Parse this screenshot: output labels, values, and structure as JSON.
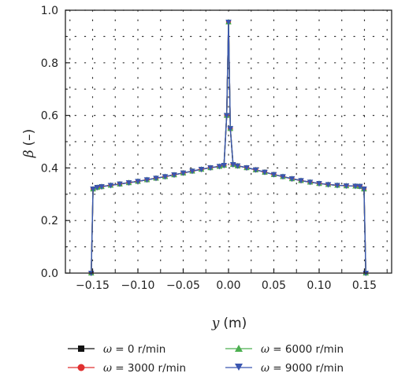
{
  "chart_data": {
    "type": "line",
    "xlabel": {
      "symbol": "y",
      "unit": "(m)"
    },
    "ylabel": {
      "symbol": "β",
      "unit": "(–)"
    },
    "xlim": [
      -0.18,
      0.18
    ],
    "ylim": [
      0.0,
      1.0
    ],
    "xticks": [
      -0.15,
      -0.1,
      -0.05,
      0.0,
      0.05,
      0.1,
      0.15
    ],
    "xtick_labels": [
      "−0.15",
      "−0.10",
      "−0.05",
      "0.00",
      "0.05",
      "0.10",
      "0.15"
    ],
    "yticks": [
      0.0,
      0.2,
      0.4,
      0.6,
      0.8,
      1.0
    ],
    "ytick_labels": [
      "0.0",
      "0.2",
      "0.4",
      "0.6",
      "0.8",
      "1.0"
    ],
    "grid": "dotted",
    "legend_position": "bottom",
    "series": [
      {
        "name": "ω = 0 r/min",
        "symbol": "ω",
        "text": " = 0 r/min",
        "color": "#111111",
        "marker": "square",
        "x": [
          -0.1515,
          -0.1495,
          -0.145,
          -0.14,
          -0.13,
          -0.12,
          -0.11,
          -0.1,
          -0.09,
          -0.08,
          -0.07,
          -0.06,
          -0.05,
          -0.04,
          -0.03,
          -0.02,
          -0.01,
          -0.005,
          -0.002,
          0.0,
          0.002,
          0.005,
          0.01,
          0.02,
          0.03,
          0.04,
          0.05,
          0.06,
          0.07,
          0.08,
          0.09,
          0.1,
          0.11,
          0.12,
          0.13,
          0.14,
          0.145,
          0.1495,
          0.1515
        ],
        "y": [
          0.0,
          0.32,
          0.326,
          0.329,
          0.334,
          0.339,
          0.344,
          0.349,
          0.355,
          0.361,
          0.367,
          0.374,
          0.381,
          0.388,
          0.395,
          0.401,
          0.406,
          0.41,
          0.6,
          0.955,
          0.55,
          0.413,
          0.408,
          0.401,
          0.393,
          0.384,
          0.375,
          0.367,
          0.359,
          0.352,
          0.346,
          0.341,
          0.337,
          0.334,
          0.332,
          0.331,
          0.33,
          0.32,
          0.0
        ]
      },
      {
        "name": "ω = 3000 r/min",
        "symbol": "ω",
        "text": " = 3000 r/min",
        "color": "#e03030",
        "marker": "circle",
        "x": [
          -0.1515,
          -0.1495,
          -0.145,
          -0.14,
          -0.13,
          -0.12,
          -0.11,
          -0.1,
          -0.09,
          -0.08,
          -0.07,
          -0.06,
          -0.05,
          -0.04,
          -0.03,
          -0.02,
          -0.01,
          -0.005,
          -0.002,
          0.0,
          0.002,
          0.005,
          0.01,
          0.02,
          0.03,
          0.04,
          0.05,
          0.06,
          0.07,
          0.08,
          0.09,
          0.1,
          0.11,
          0.12,
          0.13,
          0.14,
          0.145,
          0.1495,
          0.1515
        ],
        "y": [
          0.0,
          0.32,
          0.326,
          0.329,
          0.334,
          0.339,
          0.344,
          0.349,
          0.355,
          0.361,
          0.367,
          0.374,
          0.381,
          0.388,
          0.395,
          0.401,
          0.406,
          0.41,
          0.6,
          0.955,
          0.55,
          0.413,
          0.408,
          0.401,
          0.393,
          0.384,
          0.375,
          0.367,
          0.359,
          0.352,
          0.346,
          0.341,
          0.337,
          0.334,
          0.332,
          0.331,
          0.33,
          0.32,
          0.0
        ]
      },
      {
        "name": "ω = 6000 r/min",
        "symbol": "ω",
        "text": " = 6000 r/min",
        "color": "#4caf50",
        "marker": "triangle-up",
        "x": [
          -0.1515,
          -0.1495,
          -0.145,
          -0.14,
          -0.13,
          -0.12,
          -0.11,
          -0.1,
          -0.09,
          -0.08,
          -0.07,
          -0.06,
          -0.05,
          -0.04,
          -0.03,
          -0.02,
          -0.01,
          -0.005,
          -0.002,
          0.0,
          0.002,
          0.005,
          0.01,
          0.02,
          0.03,
          0.04,
          0.05,
          0.06,
          0.07,
          0.08,
          0.09,
          0.1,
          0.11,
          0.12,
          0.13,
          0.14,
          0.145,
          0.1495,
          0.1515
        ],
        "y": [
          0.0,
          0.32,
          0.326,
          0.329,
          0.334,
          0.339,
          0.344,
          0.349,
          0.355,
          0.361,
          0.367,
          0.374,
          0.381,
          0.388,
          0.395,
          0.401,
          0.406,
          0.41,
          0.6,
          0.955,
          0.55,
          0.413,
          0.408,
          0.401,
          0.393,
          0.384,
          0.375,
          0.367,
          0.359,
          0.352,
          0.346,
          0.341,
          0.337,
          0.334,
          0.332,
          0.331,
          0.33,
          0.32,
          0.0
        ]
      },
      {
        "name": "ω = 9000 r/min",
        "symbol": "ω",
        "text": " = 9000 r/min",
        "color": "#3a56b0",
        "marker": "triangle-down",
        "x": [
          -0.1515,
          -0.1495,
          -0.145,
          -0.14,
          -0.13,
          -0.12,
          -0.11,
          -0.1,
          -0.09,
          -0.08,
          -0.07,
          -0.06,
          -0.05,
          -0.04,
          -0.03,
          -0.02,
          -0.01,
          -0.005,
          -0.002,
          0.0,
          0.002,
          0.005,
          0.01,
          0.02,
          0.03,
          0.04,
          0.05,
          0.06,
          0.07,
          0.08,
          0.09,
          0.1,
          0.11,
          0.12,
          0.13,
          0.14,
          0.145,
          0.1495,
          0.1515
        ],
        "y": [
          0.0,
          0.32,
          0.326,
          0.329,
          0.334,
          0.339,
          0.344,
          0.349,
          0.355,
          0.361,
          0.367,
          0.374,
          0.381,
          0.388,
          0.395,
          0.401,
          0.406,
          0.41,
          0.6,
          0.955,
          0.55,
          0.413,
          0.408,
          0.401,
          0.393,
          0.384,
          0.375,
          0.367,
          0.359,
          0.352,
          0.346,
          0.341,
          0.337,
          0.334,
          0.332,
          0.331,
          0.33,
          0.32,
          0.0
        ]
      }
    ]
  }
}
